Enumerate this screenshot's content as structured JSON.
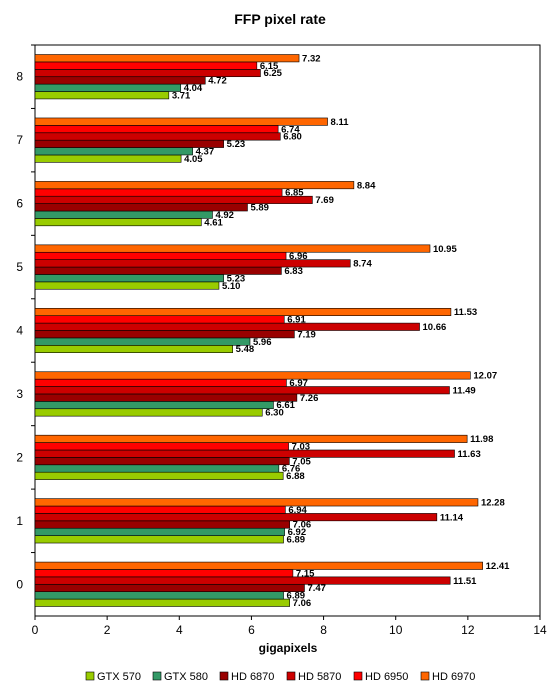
{
  "chart_data": {
    "type": "bar",
    "orientation": "horizontal",
    "title": "FFP pixel rate",
    "xlabel": "gigapixels",
    "ylabel": "",
    "xlim": [
      0,
      14
    ],
    "x_ticks": [
      0,
      2,
      4,
      6,
      8,
      10,
      12,
      14
    ],
    "categories": [
      "0",
      "1",
      "2",
      "3",
      "4",
      "5",
      "6",
      "7",
      "8"
    ],
    "grid": false,
    "legend_position": "bottom",
    "series": [
      {
        "name": "GTX 570",
        "color": "#99cc00",
        "values": [
          7.06,
          6.89,
          6.88,
          6.3,
          5.48,
          5.1,
          4.61,
          4.05,
          3.71
        ]
      },
      {
        "name": "GTX 580",
        "color": "#339966",
        "values": [
          6.89,
          6.92,
          6.76,
          6.61,
          5.96,
          5.23,
          4.92,
          4.37,
          4.04
        ]
      },
      {
        "name": "HD 6870",
        "color": "#990000",
        "values": [
          7.47,
          7.06,
          7.05,
          7.26,
          7.19,
          6.83,
          5.89,
          5.23,
          4.72
        ]
      },
      {
        "name": "HD 5870",
        "color": "#cc0000",
        "values": [
          11.51,
          11.14,
          11.63,
          11.49,
          10.66,
          8.74,
          7.69,
          6.8,
          6.25
        ]
      },
      {
        "name": "HD 6950",
        "color": "#ff0000",
        "values": [
          7.15,
          6.94,
          7.03,
          6.97,
          6.91,
          6.96,
          6.85,
          6.74,
          6.15
        ]
      },
      {
        "name": "HD 6970",
        "color": "#ff6600",
        "values": [
          12.41,
          12.28,
          11.98,
          12.07,
          11.53,
          10.95,
          8.84,
          8.11,
          7.32
        ]
      }
    ]
  }
}
